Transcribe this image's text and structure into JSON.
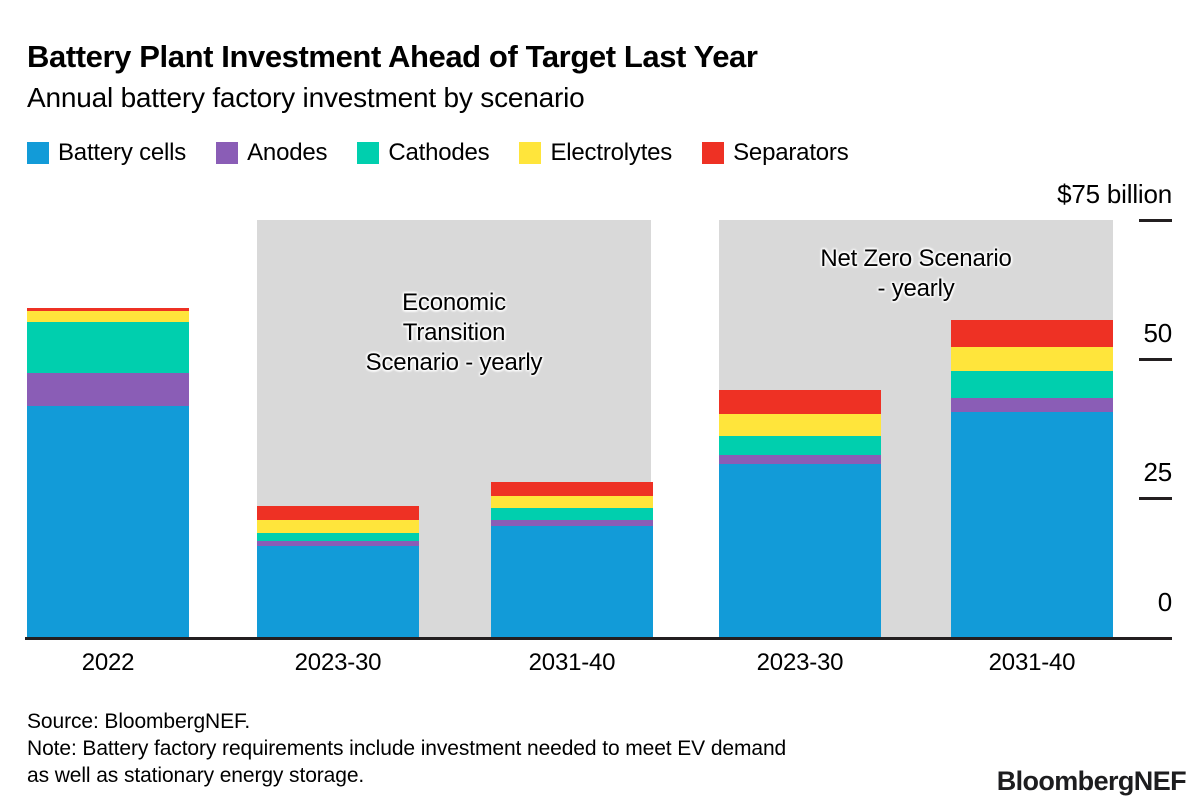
{
  "header": {
    "title": "Battery Plant Investment Ahead of Target Last Year",
    "subtitle": "Annual battery factory investment by scenario"
  },
  "legend": [
    {
      "key": "battery-cells",
      "label": "Battery cells",
      "color": "#129bd8"
    },
    {
      "key": "anodes",
      "label": "Anodes",
      "color": "#8a5db6"
    },
    {
      "key": "cathodes",
      "label": "Cathodes",
      "color": "#00cfae"
    },
    {
      "key": "electrolytes",
      "label": "Electrolytes",
      "color": "#ffe53b"
    },
    {
      "key": "separators",
      "label": "Separators",
      "color": "#ee3124"
    }
  ],
  "chart_data": {
    "type": "bar",
    "stacked": true,
    "title": "Battery Plant Investment Ahead of Target Last Year",
    "subtitle": "Annual battery factory investment by scenario",
    "unit": "$ billion",
    "ylim": [
      0,
      75
    ],
    "grid": false,
    "legend_position": "top",
    "axis_side": "right",
    "ytick_top_label": "$75 billion",
    "yticks": [
      {
        "value": 75,
        "label": "$75 billion",
        "tick_mark": true
      },
      {
        "value": 50,
        "label": "50",
        "tick_mark": true
      },
      {
        "value": 25,
        "label": "25",
        "tick_mark": true
      },
      {
        "value": 0,
        "label": "0",
        "tick_mark": false
      }
    ],
    "categories": [
      "2022",
      "2023-30",
      "2031-40",
      "2023-30",
      "2031-40"
    ],
    "series": [
      {
        "name": "Battery cells",
        "color": "#129bd8",
        "values": [
          41.5,
          16.3,
          19.9,
          31.1,
          40.5
        ]
      },
      {
        "name": "Anodes",
        "color": "#8a5db6",
        "values": [
          6.0,
          0.9,
          1.1,
          1.7,
          2.5
        ]
      },
      {
        "name": "Cathodes",
        "color": "#00cfae",
        "values": [
          9.1,
          1.5,
          2.2,
          3.3,
          4.9
        ]
      },
      {
        "name": "Electrolytes",
        "color": "#ffe53b",
        "values": [
          2.1,
          2.3,
          2.2,
          4.0,
          4.2
        ]
      },
      {
        "name": "Separators",
        "color": "#ee3124",
        "values": [
          0.4,
          2.5,
          2.4,
          4.4,
          5.0
        ]
      }
    ],
    "scenario_panels": [
      {
        "key": "economic-transition",
        "text_lines": [
          "Economic",
          "Transition",
          "Scenario - yearly"
        ],
        "covers_categories": [
          "2023-30",
          "2031-40"
        ],
        "background": "#d9d9d9"
      },
      {
        "key": "net-zero",
        "text_lines": [
          "Net Zero Scenario",
          "- yearly"
        ],
        "covers_categories": [
          "2023-30",
          "2031-40"
        ],
        "background": "#d9d9d9"
      }
    ]
  },
  "footer": {
    "source": "Source: BloombergNEF.",
    "note_line1": "Note: Battery factory requirements include investment needed to meet EV demand",
    "note_line2": "as well as stationary energy storage.",
    "logo": "BloombergNEF"
  }
}
